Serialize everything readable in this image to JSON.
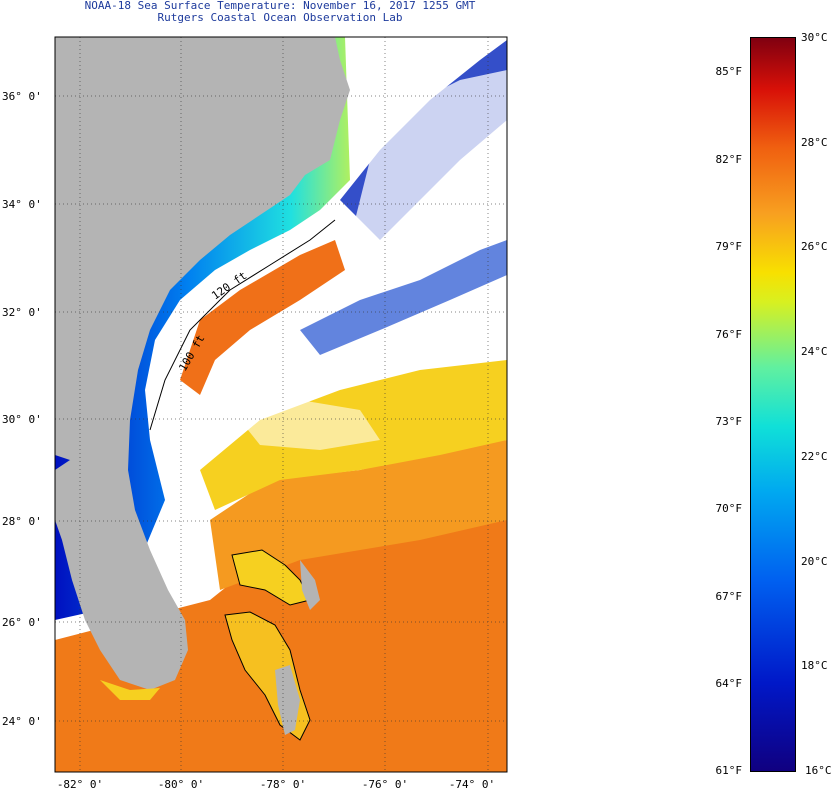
{
  "header": {
    "title": "NOAA-18 Sea Surface Temperature:  November 16, 2017 1255 GMT",
    "subtitle": "Rutgers Coastal Ocean Observation Lab"
  },
  "map": {
    "lat_labels": [
      "36° 0'",
      "34° 0'",
      "32° 0'",
      "30° 0'",
      "28° 0'",
      "26° 0'",
      "24° 0'"
    ],
    "lon_labels": [
      "-82° 0'",
      "-80° 0'",
      "-78° 0'",
      "-76° 0'",
      "-74° 0'"
    ],
    "isobath_labels": [
      "120 ft",
      "100 ft"
    ],
    "colors": {
      "land": "#b4b4b4",
      "ocean_background": "#ffffff",
      "cloud": "#ffffff"
    }
  },
  "legend": {
    "fahrenheit_labels": [
      "85°F",
      "82°F",
      "79°F",
      "76°F",
      "73°F",
      "70°F",
      "67°F",
      "64°F",
      "61°F"
    ],
    "celsius_labels": [
      "30°C",
      "28°C",
      "26°C",
      "24°C",
      "22°C",
      "20°C",
      "18°C",
      "16°C"
    ]
  }
}
